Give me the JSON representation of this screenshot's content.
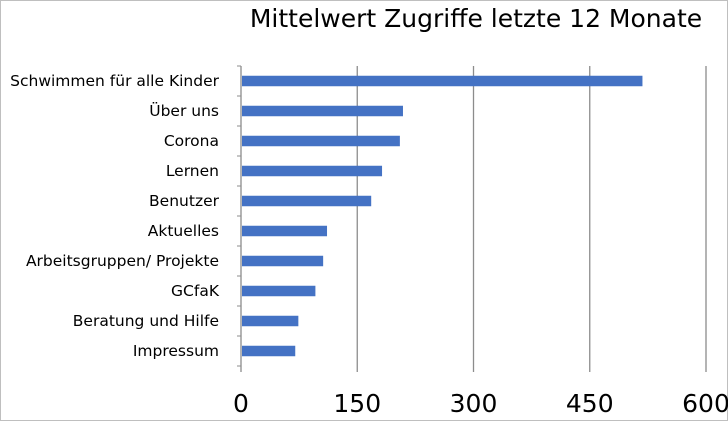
{
  "chart_data": {
    "type": "bar",
    "orientation": "horizontal",
    "title": "Mittelwert Zugriffe letzte 12 Monate",
    "categories": [
      "Schwimmen für alle Kinder",
      "Über uns",
      "Corona",
      "Lernen",
      "Benutzer",
      "Aktuelles",
      "Arbeitsgruppen/ Projekte",
      "GCfaK",
      "Beratung und Hilfe",
      "Impressum"
    ],
    "values": [
      518,
      209,
      205,
      182,
      168,
      111,
      106,
      96,
      74,
      70
    ],
    "xlim": [
      0,
      600
    ],
    "xticks": [
      0,
      150,
      300,
      450,
      600
    ],
    "xlabel": "",
    "ylabel": "",
    "grid": "vertical",
    "legend": "none",
    "colors": {
      "bar": "#4472c4",
      "grid": "#8c8c8c",
      "axis": "#8c8c8c",
      "text": "#000000"
    }
  }
}
